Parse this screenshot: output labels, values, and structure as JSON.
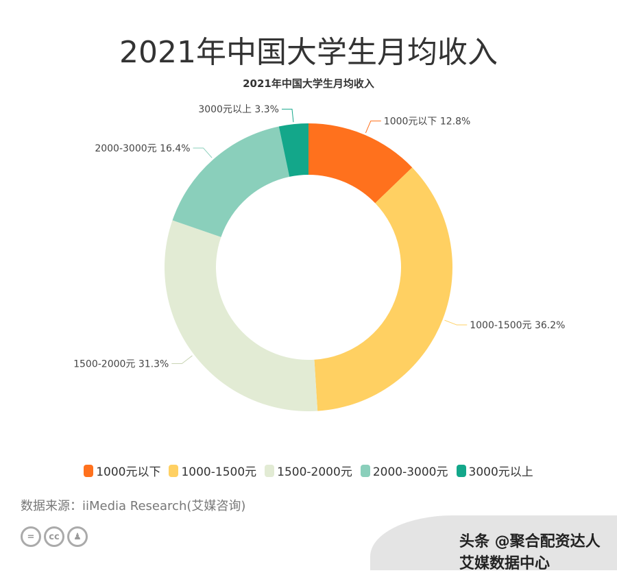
{
  "header": {
    "title": "2021年中国大学生月均收入"
  },
  "chart_data": {
    "type": "pie",
    "donut": true,
    "title": "2021年中国大学生月均收入",
    "categories": [
      "1000元以下",
      "1000-1500元",
      "1500-2000元",
      "2000-3000元",
      "3000元以上"
    ],
    "values": [
      12.8,
      36.2,
      31.3,
      16.4,
      3.3
    ],
    "labels": [
      "1000元以下 12.8%",
      "1000-1500元 36.2%",
      "1500-2000元 31.3%",
      "2000-3000元 16.4%",
      "3000元以上 3.3%"
    ],
    "colors": [
      "#ff711d",
      "#ffd062",
      "#e2ebd4",
      "#8acfbb",
      "#13a78a"
    ],
    "legend_position": "bottom"
  },
  "footer": {
    "source": "数据来源：iiMedia Research(艾媒咨询)",
    "cc_icons": [
      "equals-icon",
      "cc-icon",
      "person-icon"
    ],
    "watermark": "头条 @聚合配资达人 艾媒数据中心"
  }
}
